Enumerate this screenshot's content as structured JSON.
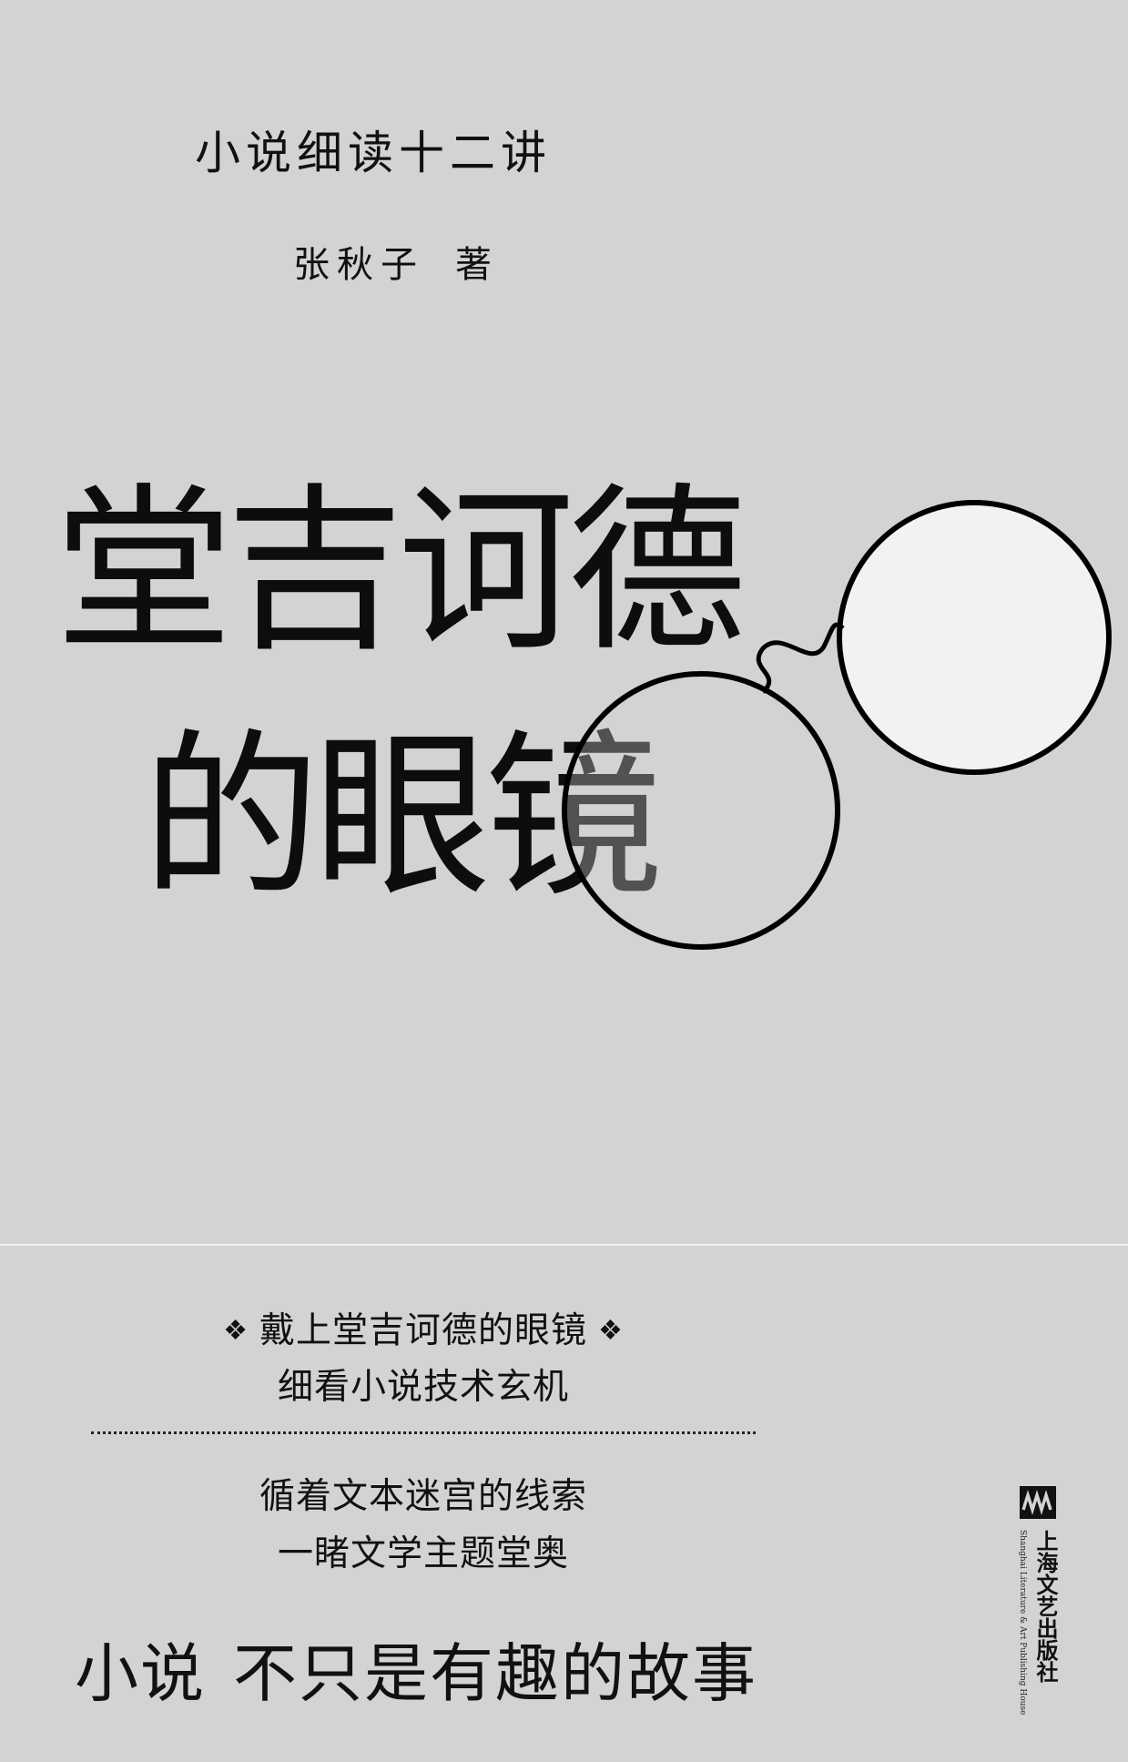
{
  "cover": {
    "series": "小说细读十二讲",
    "author": "张秋子",
    "author_role": "著",
    "title_line1": "堂吉诃德",
    "title_line2": "的眼镜",
    "taglines": {
      "line1": "戴上堂吉诃德的眼镜",
      "line2": "细看小说技术玄机",
      "line3": "循着文本迷宫的线索",
      "line4": "一睹文学主题堂奥"
    },
    "diamond_glyph": "❖",
    "slogan_part1": "小说",
    "slogan_part2": "不只是有趣的故事",
    "publisher_cn": "上海文艺出版社",
    "publisher_en": "Shanghai Literature & Art Publishing House"
  },
  "colors": {
    "background": "#d3d3d3",
    "text": "#111111",
    "lens_fill": "#f2f2f2",
    "divider": "#f1f1f1"
  }
}
